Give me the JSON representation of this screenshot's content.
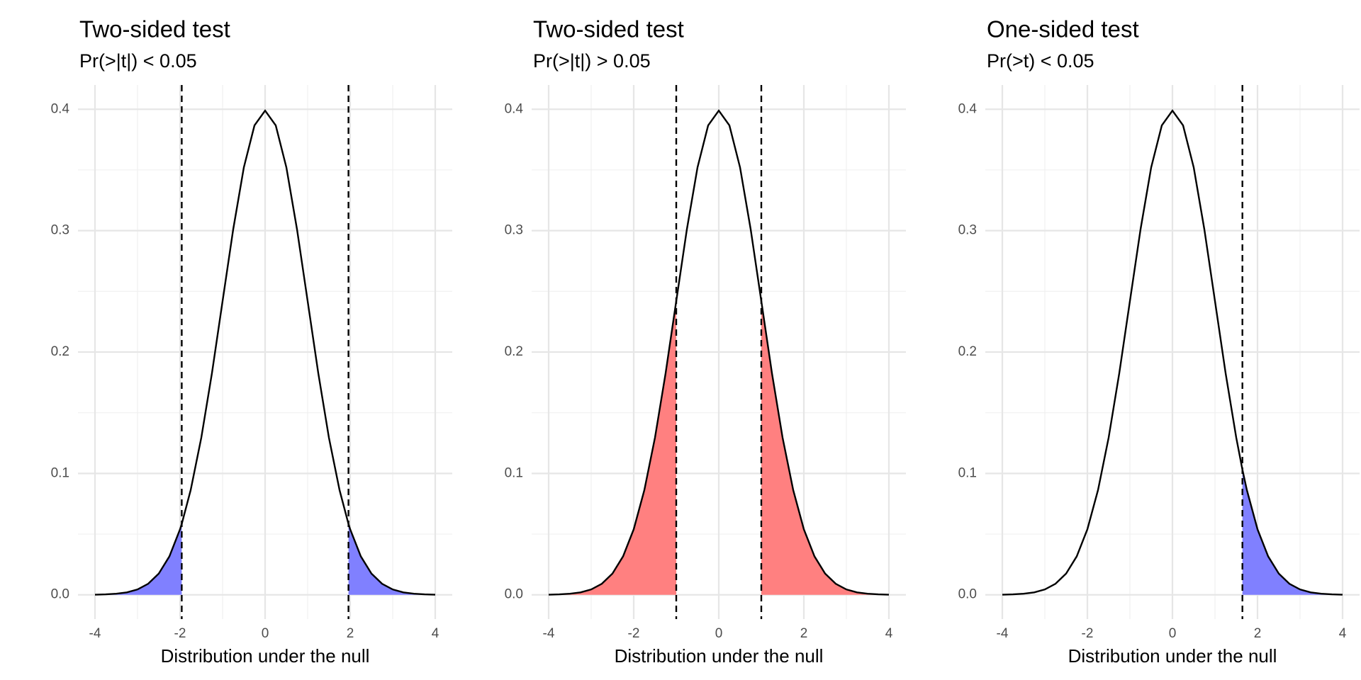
{
  "chart_data": [
    {
      "type": "density",
      "title": "Two-sided test",
      "subtitle": "Pr(>|t|) < 0.05",
      "x_label": "Distribution under the null",
      "x": [
        -4,
        -3.75,
        -3.5,
        -3.25,
        -3,
        -2.75,
        -2.5,
        -2.25,
        -2,
        -1.96,
        -1.75,
        -1.5,
        -1.25,
        -1,
        -0.75,
        -0.5,
        -0.25,
        0,
        0.25,
        0.5,
        0.75,
        1,
        1.25,
        1.5,
        1.75,
        1.96,
        2,
        2.25,
        2.5,
        2.75,
        3,
        3.25,
        3.5,
        3.75,
        4
      ],
      "series": [
        {
          "color": "#000000",
          "values": [
            0.0001,
            0.0004,
            0.0009,
            0.002,
            0.0044,
            0.0091,
            0.0175,
            0.0317,
            0.054,
            0.0584,
            0.0863,
            0.1295,
            0.1826,
            0.242,
            0.3011,
            0.3521,
            0.3867,
            0.3989,
            0.3867,
            0.3521,
            0.3011,
            0.242,
            0.1826,
            0.1295,
            0.0863,
            0.0584,
            0.054,
            0.0317,
            0.0175,
            0.0091,
            0.0044,
            0.002,
            0.0009,
            0.0004,
            0.0001
          ]
        }
      ],
      "shade": {
        "color": "#8080ff",
        "ranges": [
          [
            -4,
            -1.96
          ],
          [
            1.96,
            4
          ]
        ]
      },
      "vlines": [
        -1.96,
        1.96
      ],
      "xlim": [
        -4.4,
        4.4
      ],
      "ylim": [
        -0.02,
        0.42
      ],
      "xticks": [
        -4,
        -2,
        0,
        2,
        4
      ],
      "yticks": [
        {
          "value": 0,
          "label": "0.0"
        },
        0.1,
        0.2,
        0.3,
        0.4
      ],
      "xminor": [
        -3,
        -1,
        1,
        3
      ],
      "yminor": [
        0.05,
        0.15,
        0.25,
        0.35
      ],
      "grid": true
    },
    {
      "type": "density",
      "title": "Two-sided test",
      "subtitle": "Pr(>|t|) > 0.05",
      "x_label": "Distribution under the null",
      "x": [
        -4,
        -3.75,
        -3.5,
        -3.25,
        -3,
        -2.75,
        -2.5,
        -2.25,
        -2,
        -1.75,
        -1.5,
        -1.25,
        -1,
        -0.75,
        -0.5,
        -0.25,
        0,
        0.25,
        0.5,
        0.75,
        1,
        1.25,
        1.5,
        1.75,
        2,
        2.25,
        2.5,
        2.75,
        3,
        3.25,
        3.5,
        3.75,
        4
      ],
      "series": [
        {
          "color": "#000000",
          "values": [
            0.0001,
            0.0004,
            0.0009,
            0.002,
            0.0044,
            0.0091,
            0.0175,
            0.0317,
            0.054,
            0.0863,
            0.1295,
            0.1826,
            0.242,
            0.3011,
            0.3521,
            0.3867,
            0.3989,
            0.3867,
            0.3521,
            0.3011,
            0.242,
            0.1826,
            0.1295,
            0.0863,
            0.054,
            0.0317,
            0.0175,
            0.0091,
            0.0044,
            0.002,
            0.0009,
            0.0004,
            0.0001
          ]
        }
      ],
      "shade": {
        "color": "#ff8080",
        "ranges": [
          [
            -4,
            -1
          ],
          [
            1,
            4
          ]
        ]
      },
      "vlines": [
        -1,
        1
      ],
      "xlim": [
        -4.4,
        4.4
      ],
      "ylim": [
        -0.02,
        0.42
      ],
      "xticks": [
        -4,
        -2,
        0,
        2,
        4
      ],
      "yticks": [
        {
          "value": 0,
          "label": "0.0"
        },
        0.1,
        0.2,
        0.3,
        0.4
      ],
      "xminor": [
        -3,
        -1,
        1,
        3
      ],
      "yminor": [
        0.05,
        0.15,
        0.25,
        0.35
      ],
      "grid": true
    },
    {
      "type": "density",
      "title": "One-sided test",
      "subtitle": "Pr(>t) < 0.05",
      "x_label": "Distribution under the null",
      "x": [
        -4,
        -3.75,
        -3.5,
        -3.25,
        -3,
        -2.75,
        -2.5,
        -2.25,
        -2,
        -1.75,
        -1.5,
        -1.25,
        -1,
        -0.75,
        -0.5,
        -0.25,
        0,
        0.25,
        0.5,
        0.75,
        1,
        1.25,
        1.5,
        1.645,
        1.75,
        2,
        2.25,
        2.5,
        2.75,
        3,
        3.25,
        3.5,
        3.75,
        4
      ],
      "series": [
        {
          "color": "#000000",
          "values": [
            0.0001,
            0.0004,
            0.0009,
            0.002,
            0.0044,
            0.0091,
            0.0175,
            0.0317,
            0.054,
            0.0863,
            0.1295,
            0.1826,
            0.242,
            0.3011,
            0.3521,
            0.3867,
            0.3989,
            0.3867,
            0.3521,
            0.3011,
            0.242,
            0.1826,
            0.1295,
            0.1031,
            0.0863,
            0.054,
            0.0317,
            0.0175,
            0.0091,
            0.0044,
            0.002,
            0.0009,
            0.0004,
            0.0001
          ]
        }
      ],
      "shade": {
        "color": "#8080ff",
        "ranges": [
          [
            1.645,
            4
          ]
        ]
      },
      "vlines": [
        1.645
      ],
      "xlim": [
        -4.4,
        4.4
      ],
      "ylim": [
        -0.02,
        0.42
      ],
      "xticks": [
        -4,
        -2,
        0,
        2,
        4
      ],
      "yticks": [
        {
          "value": 0,
          "label": "0.0"
        },
        0.1,
        0.2,
        0.3,
        0.4
      ],
      "xminor": [
        -3,
        -1,
        1,
        3
      ],
      "yminor": [
        0.05,
        0.15,
        0.25,
        0.35
      ],
      "grid": true
    }
  ]
}
